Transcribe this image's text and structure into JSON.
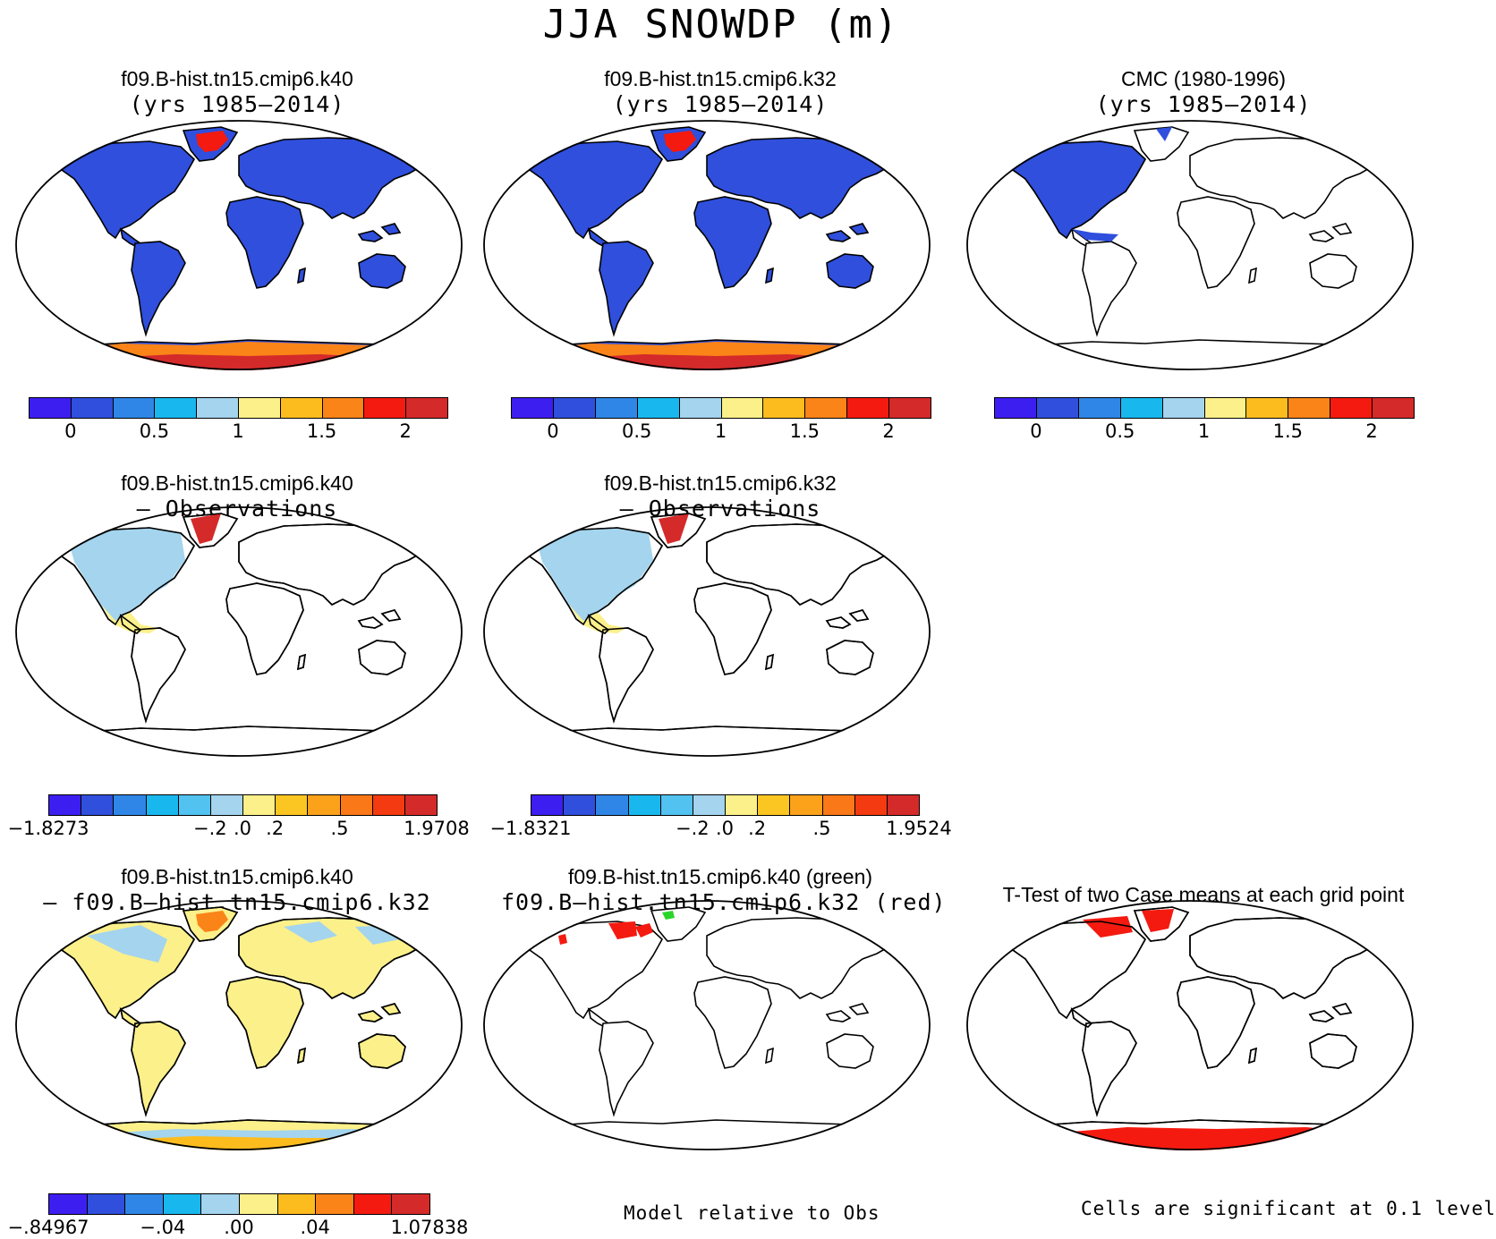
{
  "title": "JJA SNOWDP (m)",
  "panels": [
    {
      "id": "p1",
      "line1": "f09.B-hist.tn15.cmip6.k40",
      "line2": "(yrs 1985–2014)"
    },
    {
      "id": "p2",
      "line1": "f09.B-hist.tn15.cmip6.k32",
      "line2": "(yrs 1985–2014)"
    },
    {
      "id": "p3",
      "line1": "CMC (1980-1996)",
      "line2": "(yrs 1985–2014)"
    },
    {
      "id": "p4",
      "line1": "f09.B-hist.tn15.cmip6.k40",
      "line2": "– Observations"
    },
    {
      "id": "p5",
      "line1": "f09.B-hist.tn15.cmip6.k32",
      "line2": "– Observations"
    },
    {
      "id": "p6",
      "line1": "f09.B-hist.tn15.cmip6.k40",
      "line2": "– f09.B–hist.tn15.cmip6.k32"
    },
    {
      "id": "p7",
      "line1": "f09.B-hist.tn15.cmip6.k40 (green)",
      "line2": "f09.B–hist.tn15.cmip6.k32 (red)"
    },
    {
      "id": "p8",
      "line1": "T-Test of two Case means at each grid point",
      "line2": ""
    }
  ],
  "colorbars": {
    "snow": {
      "colors": [
        "#3d1ef0",
        "#2f4fdc",
        "#2f86e6",
        "#18b8ee",
        "#a4d4ee",
        "#fcf08a",
        "#fcbc1e",
        "#fa8418",
        "#f41a10",
        "#d42a2a"
      ],
      "ticks": [
        "0",
        "0.5",
        "1",
        "1.5",
        "2"
      ]
    },
    "diff1": {
      "colors": [
        "#3d1ef0",
        "#2f4fdc",
        "#2f86e6",
        "#18b8ee",
        "#52c2f0",
        "#a4d4ee",
        "#fcf08a",
        "#fcc622",
        "#fca21a",
        "#fa7818",
        "#f43a10",
        "#d42a2a"
      ],
      "ticks": [
        "−1.8273",
        "−.2",
        ".0",
        ".2",
        ".5",
        "1.9708"
      ]
    },
    "diff2": {
      "colors": [
        "#3d1ef0",
        "#2f4fdc",
        "#2f86e6",
        "#18b8ee",
        "#52c2f0",
        "#a4d4ee",
        "#fcf08a",
        "#fcc622",
        "#fca21a",
        "#fa7818",
        "#f43a10",
        "#d42a2a"
      ],
      "ticks": [
        "−1.8321",
        "−.2",
        ".0",
        ".2",
        ".5",
        "1.9524"
      ]
    },
    "diff3": {
      "colors": [
        "#3d1ef0",
        "#2f4fdc",
        "#2f86e6",
        "#18b8ee",
        "#a4d4ee",
        "#fcf08a",
        "#fcbc1e",
        "#fa8418",
        "#f41a10",
        "#d42a2a"
      ],
      "ticks": [
        "−.84967",
        "−.04",
        ".00",
        ".04",
        "1.07838"
      ]
    }
  },
  "footnotes": {
    "model_rel": "Model relative to Obs",
    "signif": "Cells are significant at 0.1 level"
  },
  "chart_data": {
    "type": "heatmap",
    "title": "JJA SNOWDP (m)",
    "maps": [
      {
        "panel": "f09.B-hist.tn15.cmip6.k40 (yrs 1985–2014)",
        "colorbar_ticks": [
          0,
          0.5,
          1,
          1.5,
          2
        ]
      },
      {
        "panel": "f09.B-hist.tn15.cmip6.k32 (yrs 1985–2014)",
        "colorbar_ticks": [
          0,
          0.5,
          1,
          1.5,
          2
        ]
      },
      {
        "panel": "CMC (1980-1996) (yrs 1985–2014)",
        "colorbar_ticks": [
          0,
          0.5,
          1,
          1.5,
          2
        ]
      },
      {
        "panel": "f09.B-hist.tn15.cmip6.k40 – Observations",
        "colorbar_ticks": [
          -1.8273,
          -0.2,
          0.0,
          0.2,
          0.5,
          1.9708
        ]
      },
      {
        "panel": "f09.B-hist.tn15.cmip6.k32 – Observations",
        "colorbar_ticks": [
          -1.8321,
          -0.2,
          0.0,
          0.2,
          0.5,
          1.9524
        ]
      },
      {
        "panel": "f09.B-hist.tn15.cmip6.k40 – f09.B–hist.tn15.cmip6.k32",
        "colorbar_ticks": [
          -0.84967,
          -0.04,
          0.0,
          0.04,
          1.07838
        ]
      },
      {
        "panel": "f09.B-hist.tn15.cmip6.k40 (green) f09.B–hist.tn15.cmip6.k32 (red)"
      },
      {
        "panel": "T-Test of two Case means at each grid point"
      }
    ]
  }
}
